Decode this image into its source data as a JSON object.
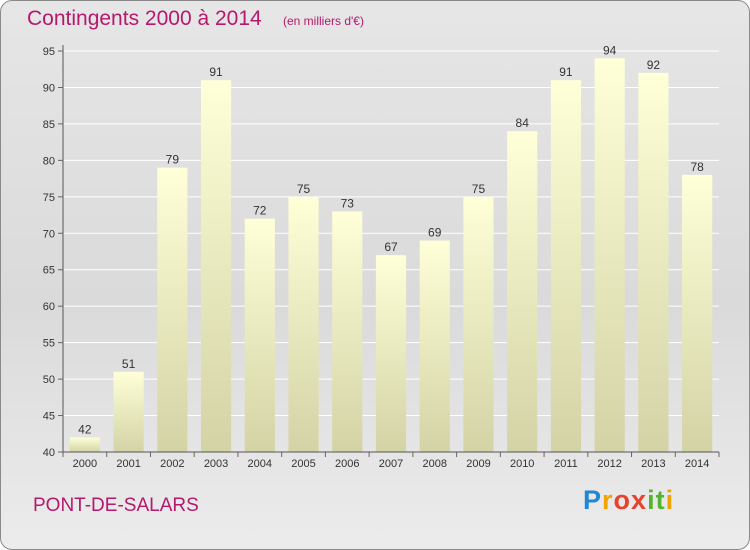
{
  "header": {
    "title": "Contingents 2000 à 2014",
    "unit": "(en milliers d'€)"
  },
  "footer": {
    "place": "PONT-DE-SALARS",
    "logo": "Proxiti",
    "logo_parts": [
      "P",
      "r",
      "o",
      "x",
      "i",
      "t",
      "i"
    ]
  },
  "colors": {
    "title": "#b5196e",
    "bar_top": "#ffffd8",
    "bar_bottom": "#d3d3a6",
    "logo": [
      "#1e88d8",
      "#f0a400",
      "#e8412c",
      "#52b530"
    ]
  },
  "chart_data": {
    "type": "bar",
    "title": "Contingents 2000 à 2014",
    "subtitle": "(en milliers d'€)",
    "categories": [
      "2000",
      "2001",
      "2002",
      "2003",
      "2004",
      "2005",
      "2006",
      "2007",
      "2008",
      "2009",
      "2010",
      "2011",
      "2012",
      "2013",
      "2014"
    ],
    "values": [
      42,
      51,
      79,
      91,
      72,
      75,
      73,
      67,
      69,
      75,
      84,
      91,
      94,
      92,
      78
    ],
    "ylim": [
      40,
      95
    ],
    "yticks": [
      40,
      45,
      50,
      55,
      60,
      65,
      70,
      75,
      80,
      85,
      90,
      95
    ],
    "xlabel": "",
    "ylabel": "",
    "grid": true,
    "legend": "none"
  }
}
